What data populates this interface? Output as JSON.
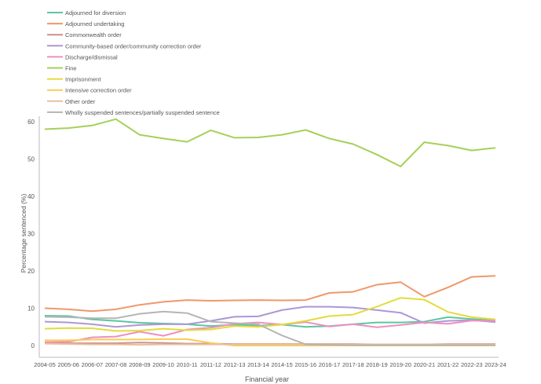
{
  "chart_data": {
    "type": "line",
    "xlabel": "Financial year",
    "ylabel": "Percentage sentenced (%)",
    "ylim": [
      0,
      60
    ],
    "yticks": [
      0,
      10,
      20,
      30,
      40,
      50,
      60
    ],
    "grid": false,
    "legend": "top-left",
    "categories": [
      "2004-05",
      "2005-06",
      "2006-07",
      "2007-08",
      "2008-09",
      "2009-10",
      "2010-11",
      "2011-12",
      "2012-13",
      "2013-14",
      "2014-15",
      "2015-16",
      "2016-17",
      "2017-18",
      "2018-19",
      "2019-20",
      "2020-21",
      "2021-22",
      "2022-23",
      "2023-24"
    ],
    "series": [
      {
        "name": "Adjourned for diversion",
        "color": "#5cc6a0",
        "values": [
          8,
          7.9,
          7,
          6.6,
          6.1,
          5.9,
          5.7,
          5.2,
          5.6,
          5.3,
          5.6,
          5,
          5.2,
          5.7,
          6.2,
          6.2,
          6.4,
          7.6,
          7.1,
          6.7
        ]
      },
      {
        "name": "Adjourned undertaking",
        "color": "#f0986a",
        "values": [
          10,
          9.7,
          9.2,
          9.7,
          10.9,
          11.7,
          12.2,
          12,
          12.1,
          12.2,
          12.1,
          12.2,
          14.1,
          14.4,
          16.3,
          17,
          13.1,
          15.6,
          18.4,
          18.7
        ]
      },
      {
        "name": "Commonwealth order",
        "color": "#cc8f8f",
        "values": [
          0.7,
          0.6,
          0.6,
          0.6,
          0.8,
          0.7,
          0.5,
          0.5,
          0.4,
          0.4,
          0.4,
          0.4,
          0.4,
          0.4,
          0.3,
          0.3,
          0.3,
          0.4,
          0.4,
          0.4
        ]
      },
      {
        "name": "Community-based order/community correction order",
        "color": "#ad97d6",
        "values": [
          6.4,
          6.2,
          5.7,
          5,
          5.5,
          5.7,
          5.7,
          6.6,
          7.7,
          7.8,
          9.5,
          10.4,
          10.4,
          10.2,
          9.5,
          8.8,
          6,
          6.6,
          6.8,
          6.3
        ]
      },
      {
        "name": "Discharge/dismissal",
        "color": "#ee8fc2",
        "values": [
          0.9,
          1,
          2.2,
          2.4,
          3.7,
          2.6,
          4.3,
          4.8,
          5.8,
          6.2,
          5.6,
          6.3,
          5.1,
          5.7,
          4.9,
          5.5,
          6.2,
          5.8,
          6.7,
          6.6
        ]
      },
      {
        "name": "Fine",
        "color": "#a6d05a",
        "values": [
          58,
          58.3,
          59,
          60.7,
          56.5,
          55.5,
          54.6,
          57.7,
          55.7,
          55.8,
          56.5,
          57.8,
          55.5,
          54,
          51.2,
          48,
          54.5,
          53.6,
          52.3,
          53
        ]
      },
      {
        "name": "Imprisonment",
        "color": "#e3dc3a",
        "values": [
          4.5,
          4.7,
          4.6,
          3.9,
          4,
          4.5,
          4.1,
          4.3,
          5.2,
          5,
          5.6,
          6.6,
          7.9,
          8.3,
          10.4,
          12.8,
          12.3,
          9,
          7.6,
          7
        ]
      },
      {
        "name": "Intensive correction order",
        "color": "#f9cc55",
        "values": [
          1.4,
          1.4,
          1.6,
          1.6,
          1.6,
          1.7,
          1.7,
          0.7,
          0,
          0,
          0,
          0,
          0,
          0,
          0,
          0,
          0,
          0,
          0,
          0
        ]
      },
      {
        "name": "Other order",
        "color": "#e8c19c",
        "values": [
          0.5,
          0.4,
          0.3,
          0.3,
          0.2,
          0.3,
          0.3,
          0.3,
          0.3,
          0.3,
          0.3,
          0.3,
          0.3,
          0.3,
          0.3,
          0.3,
          0.3,
          0.3,
          0.3,
          0.3
        ]
      },
      {
        "name": "Wholly suspended sentences/partially suspended sentence",
        "color": "#b5b5b5",
        "values": [
          7.7,
          7.6,
          7.3,
          7.3,
          8.5,
          9.1,
          8.7,
          6.4,
          6,
          5.7,
          2.7,
          0.3,
          0.2,
          0.1,
          0.1,
          0.1,
          0.1,
          0.1,
          0.1,
          0.1
        ]
      }
    ]
  }
}
